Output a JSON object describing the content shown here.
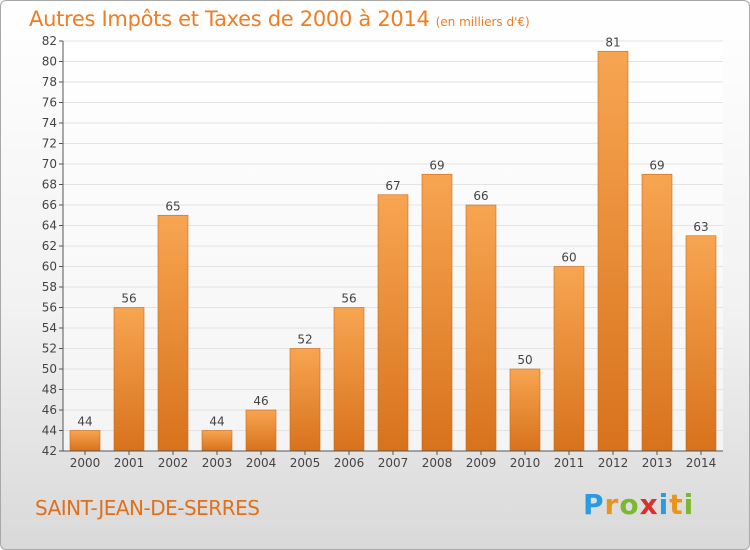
{
  "header": {
    "title": "Autres Impôts et Taxes de 2000 à 2014",
    "subtitle": "(en milliers d'€)"
  },
  "footer": {
    "commune": "SAINT-JEAN-DE-SERRES",
    "logo_letters": [
      "P",
      "r",
      "o",
      "x",
      "i",
      "t",
      "i"
    ],
    "logo_colors": [
      "#2a9be0",
      "#e8951c",
      "#7cb82f",
      "#d7332c",
      "#2a9be0",
      "#e8951c",
      "#7cb82f"
    ]
  },
  "colors": {
    "accent": "#ef7d22",
    "bar_top": "#f7a552",
    "bar_bottom": "#d8721c",
    "axis": "#555555",
    "grid": "#e3e3e3"
  },
  "chart_data": {
    "type": "bar",
    "title": "Autres Impôts et Taxes de 2000 à 2014",
    "subtitle": "(en milliers d'€)",
    "xlabel": "",
    "ylabel": "",
    "categories": [
      "2000",
      "2001",
      "2002",
      "2003",
      "2004",
      "2005",
      "2006",
      "2007",
      "2008",
      "2009",
      "2010",
      "2011",
      "2012",
      "2013",
      "2014"
    ],
    "values": [
      44,
      56,
      65,
      44,
      46,
      52,
      56,
      67,
      69,
      66,
      50,
      60,
      81,
      69,
      63
    ],
    "ylim": [
      42,
      82
    ],
    "yticks": [
      42,
      44,
      46,
      48,
      50,
      52,
      54,
      56,
      58,
      60,
      62,
      64,
      66,
      68,
      70,
      72,
      74,
      76,
      78,
      80,
      82
    ],
    "grid": true
  }
}
